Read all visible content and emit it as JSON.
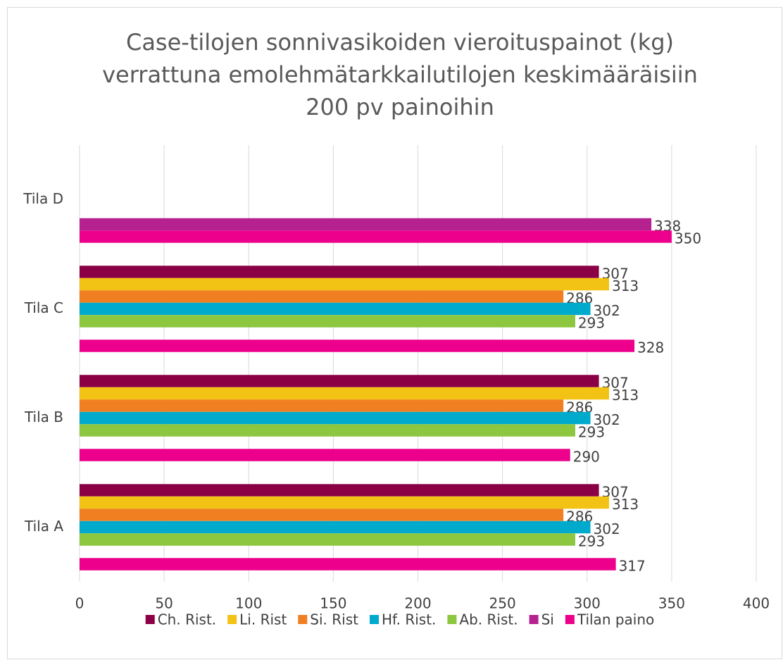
{
  "chart_data": {
    "type": "bar",
    "orientation": "horizontal",
    "title": [
      "Case-tilojen sonnivasikoiden vieroituspainot (kg)",
      "verrattuna emolehmätarkkailutilojen keskimääräisiin",
      "200 pv painoihin"
    ],
    "categories": [
      "Tila A",
      "Tila B",
      "Tila C",
      "Tila D"
    ],
    "series": [
      {
        "name": "Ch. Rist.",
        "color": "#8b0045",
        "values": [
          307,
          307,
          307,
          null
        ]
      },
      {
        "name": "Li. Rist",
        "color": "#f2c314",
        "values": [
          313,
          313,
          313,
          null
        ]
      },
      {
        "name": "Si. Rist",
        "color": "#f07f22",
        "values": [
          286,
          286,
          286,
          null
        ]
      },
      {
        "name": "Hf. Rist.",
        "color": "#00aacc",
        "values": [
          302,
          302,
          302,
          null
        ]
      },
      {
        "name": "Ab. Rist.",
        "color": "#8dc63f",
        "values": [
          293,
          293,
          293,
          null
        ]
      },
      {
        "name": "Si",
        "color": "#b5218e",
        "values": [
          null,
          null,
          null,
          338
        ]
      },
      {
        "name": "Tilan paino",
        "color": "#ec008c",
        "values": [
          317,
          290,
          328,
          350
        ]
      }
    ],
    "xlim": [
      0,
      400
    ],
    "xticks": [
      0,
      50,
      100,
      150,
      200,
      250,
      300,
      350,
      400
    ],
    "grid": true,
    "legend": "bottom"
  }
}
